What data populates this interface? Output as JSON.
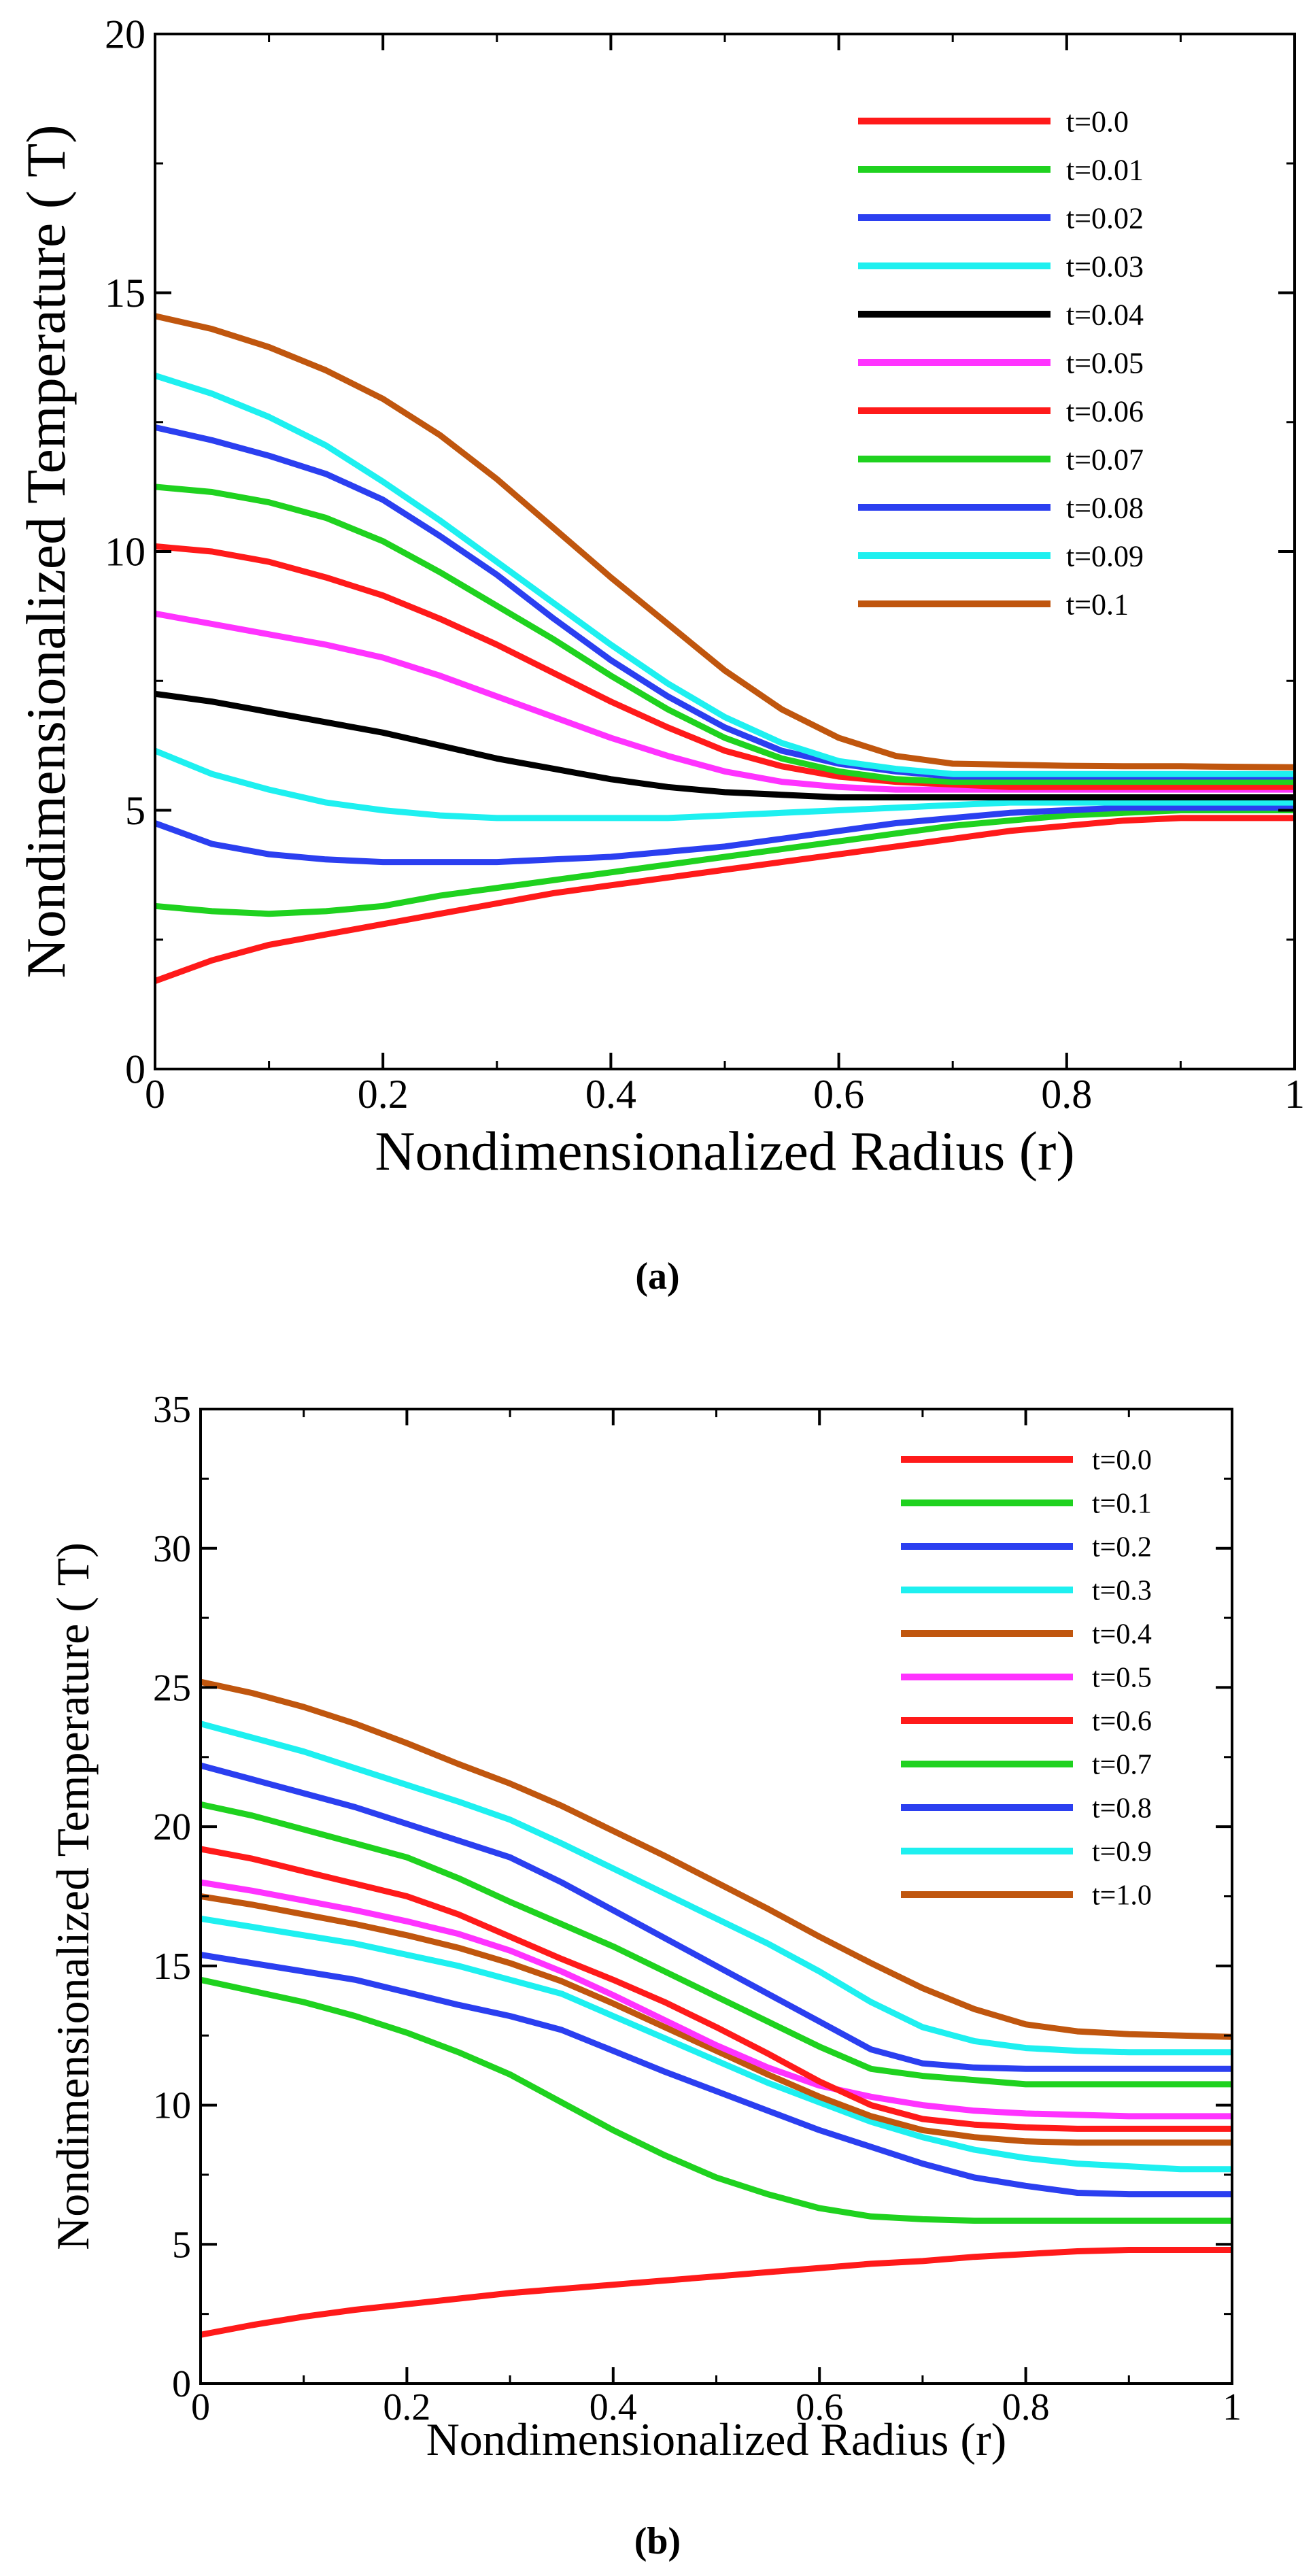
{
  "chart_data": [
    {
      "type": "line",
      "panel_label": "a",
      "xlabel": "Nondimensionalized Radius (r)",
      "ylabel": "Nondimensionalized Temperature ( T)",
      "xlim": [
        0,
        1
      ],
      "ylim": [
        0,
        20
      ],
      "xticks": [
        0,
        0.2,
        0.4,
        0.6,
        0.8,
        1
      ],
      "xtick_labels": [
        "0",
        "0.2",
        "0.4",
        "0.6",
        "0.8",
        "1"
      ],
      "yticks": [
        0,
        5,
        10,
        15,
        20
      ],
      "ytick_labels": [
        "0",
        "5",
        "10",
        "15",
        "20"
      ],
      "legend_position": "top-right",
      "x": [
        0,
        0.05,
        0.1,
        0.15,
        0.2,
        0.25,
        0.3,
        0.35,
        0.4,
        0.45,
        0.5,
        0.55,
        0.6,
        0.65,
        0.7,
        0.75,
        0.8,
        0.85,
        0.9,
        0.95,
        1
      ],
      "series": [
        {
          "name": "t=0.0",
          "color": "#ff1a1a",
          "values": [
            1.7,
            2.1,
            2.4,
            2.6,
            2.8,
            3.0,
            3.2,
            3.4,
            3.55,
            3.7,
            3.85,
            4.0,
            4.15,
            4.3,
            4.45,
            4.6,
            4.7,
            4.8,
            4.85,
            4.85,
            4.85
          ]
        },
        {
          "name": "t=0.01",
          "color": "#1fd21f",
          "values": [
            3.15,
            3.05,
            3.0,
            3.05,
            3.15,
            3.35,
            3.5,
            3.65,
            3.8,
            3.95,
            4.1,
            4.25,
            4.4,
            4.55,
            4.7,
            4.8,
            4.9,
            4.95,
            5.0,
            5.0,
            5.0
          ]
        },
        {
          "name": "t=0.02",
          "color": "#2b3ff0",
          "values": [
            4.75,
            4.35,
            4.15,
            4.05,
            4.0,
            4.0,
            4.0,
            4.05,
            4.1,
            4.2,
            4.3,
            4.45,
            4.6,
            4.75,
            4.85,
            4.95,
            5.0,
            5.05,
            5.05,
            5.05,
            5.05
          ]
        },
        {
          "name": "t=0.03",
          "color": "#1ef0f0",
          "values": [
            6.15,
            5.7,
            5.4,
            5.15,
            5.0,
            4.9,
            4.85,
            4.85,
            4.85,
            4.85,
            4.9,
            4.95,
            5.0,
            5.05,
            5.1,
            5.15,
            5.15,
            5.15,
            5.15,
            5.15,
            5.15
          ]
        },
        {
          "name": "t=0.04",
          "color": "#000000",
          "values": [
            7.25,
            7.1,
            6.9,
            6.7,
            6.5,
            6.25,
            6.0,
            5.8,
            5.6,
            5.45,
            5.35,
            5.3,
            5.25,
            5.25,
            5.25,
            5.25,
            5.25,
            5.25,
            5.25,
            5.25,
            5.25
          ]
        },
        {
          "name": "t=0.05",
          "color": "#ff33ff",
          "values": [
            8.8,
            8.6,
            8.4,
            8.2,
            7.95,
            7.6,
            7.2,
            6.8,
            6.4,
            6.05,
            5.75,
            5.55,
            5.45,
            5.4,
            5.4,
            5.4,
            5.4,
            5.4,
            5.4,
            5.4,
            5.4
          ]
        },
        {
          "name": "t=0.06",
          "color": "#ff1a1a",
          "values": [
            10.1,
            10.0,
            9.8,
            9.5,
            9.15,
            8.7,
            8.2,
            7.65,
            7.1,
            6.6,
            6.15,
            5.85,
            5.65,
            5.55,
            5.5,
            5.45,
            5.45,
            5.45,
            5.45,
            5.45,
            5.45
          ]
        },
        {
          "name": "t=0.07",
          "color": "#1fd21f",
          "values": [
            11.25,
            11.15,
            10.95,
            10.65,
            10.2,
            9.6,
            8.95,
            8.3,
            7.6,
            6.95,
            6.4,
            6.0,
            5.75,
            5.6,
            5.55,
            5.55,
            5.55,
            5.55,
            5.55,
            5.55,
            5.55
          ]
        },
        {
          "name": "t=0.08",
          "color": "#2b3ff0",
          "values": [
            12.4,
            12.15,
            11.85,
            11.5,
            11.0,
            10.3,
            9.55,
            8.7,
            7.9,
            7.2,
            6.6,
            6.15,
            5.9,
            5.75,
            5.65,
            5.65,
            5.65,
            5.65,
            5.65,
            5.65,
            5.65
          ]
        },
        {
          "name": "t=0.09",
          "color": "#1ef0f0",
          "values": [
            13.4,
            13.05,
            12.6,
            12.05,
            11.35,
            10.6,
            9.8,
            9.0,
            8.2,
            7.45,
            6.8,
            6.3,
            5.95,
            5.8,
            5.7,
            5.7,
            5.7,
            5.7,
            5.7,
            5.7,
            5.7
          ]
        },
        {
          "name": "t=0.1",
          "color": "#c0560e",
          "values": [
            14.55,
            14.3,
            13.95,
            13.5,
            12.95,
            12.25,
            11.4,
            10.45,
            9.5,
            8.6,
            7.7,
            6.95,
            6.4,
            6.05,
            5.9,
            5.88,
            5.86,
            5.85,
            5.85,
            5.84,
            5.83
          ]
        }
      ]
    },
    {
      "type": "line",
      "panel_label": "b",
      "xlabel": "Nondimensionalized Radius (r)",
      "ylabel": "Nondimensionalized Temperature ( T)",
      "xlim": [
        0,
        1
      ],
      "ylim": [
        0,
        35
      ],
      "xticks": [
        0,
        0.2,
        0.4,
        0.6,
        0.8,
        1
      ],
      "xtick_labels": [
        "0",
        "0.2",
        "0.4",
        "0.6",
        "0.8",
        "1"
      ],
      "yticks": [
        0,
        5,
        10,
        15,
        20,
        25,
        30,
        35
      ],
      "ytick_labels": [
        "0",
        "5",
        "10",
        "15",
        "20",
        "25",
        "30",
        "35"
      ],
      "legend_position": "top-right",
      "x": [
        0,
        0.05,
        0.1,
        0.15,
        0.2,
        0.25,
        0.3,
        0.35,
        0.4,
        0.45,
        0.5,
        0.55,
        0.6,
        0.65,
        0.7,
        0.75,
        0.8,
        0.85,
        0.9,
        0.95,
        1
      ],
      "series": [
        {
          "name": "t=0.0",
          "color": "#ff1a1a",
          "values": [
            1.75,
            2.1,
            2.4,
            2.65,
            2.85,
            3.05,
            3.25,
            3.4,
            3.55,
            3.7,
            3.85,
            4.0,
            4.15,
            4.3,
            4.4,
            4.55,
            4.65,
            4.75,
            4.8,
            4.8,
            4.8
          ]
        },
        {
          "name": "t=0.1",
          "color": "#1fd21f",
          "values": [
            14.5,
            14.1,
            13.7,
            13.2,
            12.6,
            11.9,
            11.1,
            10.1,
            9.1,
            8.2,
            7.4,
            6.8,
            6.3,
            6.0,
            5.9,
            5.85,
            5.85,
            5.85,
            5.85,
            5.85,
            5.85
          ]
        },
        {
          "name": "t=0.2",
          "color": "#2b3ff0",
          "values": [
            15.4,
            15.1,
            14.8,
            14.5,
            14.05,
            13.6,
            13.2,
            12.7,
            11.95,
            11.2,
            10.5,
            9.8,
            9.1,
            8.5,
            7.9,
            7.4,
            7.1,
            6.85,
            6.8,
            6.8,
            6.8
          ]
        },
        {
          "name": "t=0.3",
          "color": "#1ef0f0",
          "values": [
            16.7,
            16.4,
            16.1,
            15.8,
            15.4,
            15.0,
            14.5,
            14.0,
            13.2,
            12.4,
            11.6,
            10.8,
            10.1,
            9.4,
            8.85,
            8.4,
            8.1,
            7.9,
            7.8,
            7.7,
            7.7
          ]
        },
        {
          "name": "t=0.4",
          "color": "#c0560e",
          "values": [
            17.5,
            17.2,
            16.85,
            16.5,
            16.1,
            15.65,
            15.1,
            14.45,
            13.65,
            12.8,
            11.95,
            11.1,
            10.3,
            9.6,
            9.1,
            8.85,
            8.7,
            8.65,
            8.65,
            8.65,
            8.65
          ]
        },
        {
          "name": "t=0.5",
          "color": "#ff33ff",
          "values": [
            18.0,
            17.7,
            17.35,
            17.0,
            16.6,
            16.15,
            15.55,
            14.8,
            13.95,
            13.05,
            12.15,
            11.35,
            10.7,
            10.3,
            10.0,
            9.8,
            9.7,
            9.65,
            9.6,
            9.6,
            9.6
          ]
        },
        {
          "name": "t=0.6",
          "color": "#ff1a1a",
          "values": [
            19.2,
            18.85,
            18.4,
            17.95,
            17.5,
            16.85,
            16.05,
            15.25,
            14.5,
            13.7,
            12.8,
            11.85,
            10.85,
            10.0,
            9.5,
            9.3,
            9.2,
            9.15,
            9.15,
            9.15,
            9.15
          ]
        },
        {
          "name": "t=0.7",
          "color": "#1fd21f",
          "values": [
            20.8,
            20.4,
            19.9,
            19.4,
            18.9,
            18.15,
            17.3,
            16.5,
            15.7,
            14.8,
            13.9,
            13.0,
            12.1,
            11.3,
            11.05,
            10.9,
            10.75,
            10.75,
            10.75,
            10.75,
            10.75
          ]
        },
        {
          "name": "t=0.8",
          "color": "#2b3ff0",
          "values": [
            22.2,
            21.7,
            21.2,
            20.7,
            20.1,
            19.5,
            18.9,
            18.0,
            17.0,
            16.0,
            15.0,
            14.0,
            13.0,
            12.0,
            11.5,
            11.35,
            11.3,
            11.3,
            11.3,
            11.3,
            11.3
          ]
        },
        {
          "name": "t=0.9",
          "color": "#1ef0f0",
          "values": [
            23.7,
            23.2,
            22.7,
            22.1,
            21.5,
            20.9,
            20.25,
            19.4,
            18.5,
            17.6,
            16.7,
            15.8,
            14.8,
            13.7,
            12.8,
            12.3,
            12.05,
            11.95,
            11.9,
            11.9,
            11.9
          ]
        },
        {
          "name": "t=1.0",
          "color": "#c0560e",
          "values": [
            25.2,
            24.8,
            24.3,
            23.7,
            23.0,
            22.25,
            21.55,
            20.75,
            19.85,
            18.95,
            18.0,
            17.05,
            16.05,
            15.1,
            14.2,
            13.45,
            12.9,
            12.65,
            12.55,
            12.5,
            12.45
          ]
        }
      ]
    }
  ],
  "captions": {
    "a": "(a)",
    "b": "(b)"
  }
}
